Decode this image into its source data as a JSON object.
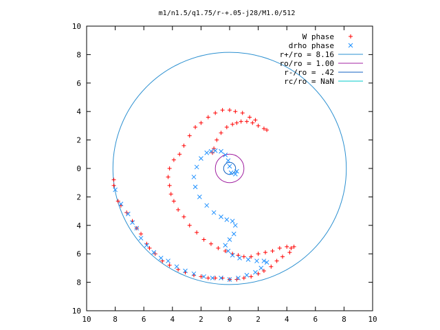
{
  "chart_data": {
    "type": "scatter",
    "title": "m1/n1.5/q1.75/r-+.05-j28/M1.0/512",
    "xlabel": "",
    "ylabel": "",
    "xlim": [
      -10,
      10
    ],
    "ylim": [
      -10,
      10
    ],
    "x_tick_labels": [
      "10",
      "8",
      "6",
      "4",
      "2",
      "0",
      "2",
      "4",
      "6",
      "8",
      "10"
    ],
    "y_tick_labels": [
      "10",
      "8",
      "6",
      "4",
      "2",
      "0",
      "2",
      "4",
      "6",
      "8",
      "10"
    ],
    "grid": false,
    "legend_position": "top-right",
    "series": [
      {
        "name": "W phase",
        "marker": "+",
        "color": "#ff0000",
        "points": [
          [
            0.5,
            3.2
          ],
          [
            0.8,
            3.3
          ],
          [
            1.2,
            3.3
          ],
          [
            1.6,
            3.2
          ],
          [
            2.0,
            3.0
          ],
          [
            2.4,
            2.8
          ],
          [
            2.6,
            2.7
          ],
          [
            0.2,
            3.1
          ],
          [
            -0.2,
            2.9
          ],
          [
            -0.6,
            2.5
          ],
          [
            -0.9,
            2.0
          ],
          [
            -1.1,
            1.4
          ],
          [
            -1.2,
            1.1
          ],
          [
            0.0,
            4.1
          ],
          [
            -0.5,
            4.1
          ],
          [
            -1.0,
            3.9
          ],
          [
            -1.5,
            3.6
          ],
          [
            -2.0,
            3.2
          ],
          [
            -2.4,
            2.9
          ],
          [
            -2.8,
            2.3
          ],
          [
            -3.2,
            1.6
          ],
          [
            -3.5,
            1.0
          ],
          [
            -3.9,
            0.6
          ],
          [
            0.4,
            4.0
          ],
          [
            0.9,
            3.9
          ],
          [
            1.4,
            3.6
          ],
          [
            1.8,
            3.4
          ],
          [
            -4.2,
            0.0
          ],
          [
            -4.3,
            -0.6
          ],
          [
            -4.2,
            -1.2
          ],
          [
            -4.1,
            -1.8
          ],
          [
            -3.9,
            -2.3
          ],
          [
            -3.6,
            -2.9
          ],
          [
            -3.2,
            -3.4
          ],
          [
            -2.8,
            -4.0
          ],
          [
            -2.3,
            -4.5
          ],
          [
            -1.8,
            -5.0
          ],
          [
            -1.3,
            -5.3
          ],
          [
            -0.8,
            -5.6
          ],
          [
            -0.3,
            -5.8
          ],
          [
            0.2,
            -6.0
          ],
          [
            0.6,
            -6.1
          ],
          [
            1.0,
            -6.2
          ],
          [
            1.5,
            -6.2
          ],
          [
            2.0,
            -6.0
          ],
          [
            2.5,
            -5.9
          ],
          [
            3.0,
            -5.8
          ],
          [
            3.5,
            -5.6
          ],
          [
            4.0,
            -5.5
          ],
          [
            4.3,
            -5.6
          ],
          [
            4.5,
            -5.5
          ],
          [
            4.2,
            -5.9
          ],
          [
            3.7,
            -6.2
          ],
          [
            3.3,
            -6.5
          ],
          [
            2.9,
            -6.9
          ],
          [
            2.4,
            -7.2
          ],
          [
            2.0,
            -7.4
          ],
          [
            1.5,
            -7.6
          ],
          [
            1.0,
            -7.7
          ],
          [
            0.5,
            -7.8
          ],
          [
            0.0,
            -7.8
          ],
          [
            -0.5,
            -7.7
          ],
          [
            -1.0,
            -7.7
          ],
          [
            -1.5,
            -7.7
          ],
          [
            -2.0,
            -7.6
          ],
          [
            -2.5,
            -7.5
          ],
          [
            -3.1,
            -7.3
          ],
          [
            -3.6,
            -7.1
          ],
          [
            -4.2,
            -6.8
          ],
          [
            -4.7,
            -6.5
          ],
          [
            -5.2,
            -6.0
          ],
          [
            -5.6,
            -5.6
          ],
          [
            -5.8,
            -5.3
          ],
          [
            -6.2,
            -4.6
          ],
          [
            -6.5,
            -4.2
          ],
          [
            -6.8,
            -3.7
          ],
          [
            -7.2,
            -3.1
          ],
          [
            -7.6,
            -2.6
          ],
          [
            -7.8,
            -2.3
          ],
          [
            -8.1,
            -1.2
          ],
          [
            -8.1,
            -0.8
          ]
        ]
      },
      {
        "name": "drho phase",
        "marker": "x",
        "color": "#1e90ff",
        "points": [
          [
            -1.3,
            1.2
          ],
          [
            -1.0,
            1.25
          ],
          [
            -0.6,
            1.2
          ],
          [
            -0.3,
            0.95
          ],
          [
            -0.1,
            0.55
          ],
          [
            0.0,
            0.15
          ],
          [
            0.1,
            -0.3
          ],
          [
            0.4,
            -0.4
          ],
          [
            0.5,
            -0.2
          ],
          [
            -1.6,
            1.1
          ],
          [
            -2.0,
            0.7
          ],
          [
            -2.3,
            0.1
          ],
          [
            -2.5,
            -0.6
          ],
          [
            -2.4,
            -1.3
          ],
          [
            -2.1,
            -2.0
          ],
          [
            -1.6,
            -2.6
          ],
          [
            -1.1,
            -3.1
          ],
          [
            -0.6,
            -3.4
          ],
          [
            -0.2,
            -3.6
          ],
          [
            0.2,
            -3.7
          ],
          [
            0.4,
            -4.0
          ],
          [
            0.3,
            -4.6
          ],
          [
            0.0,
            -5.0
          ],
          [
            -0.3,
            -5.4
          ],
          [
            -0.1,
            -5.8
          ],
          [
            0.2,
            -6.1
          ],
          [
            0.7,
            -6.3
          ],
          [
            1.3,
            -6.4
          ],
          [
            1.9,
            -6.5
          ],
          [
            2.4,
            -6.5
          ],
          [
            2.6,
            -6.6
          ],
          [
            2.2,
            -7.0
          ],
          [
            1.8,
            -7.3
          ],
          [
            1.2,
            -7.5
          ],
          [
            0.6,
            -7.7
          ],
          [
            0.0,
            -7.8
          ],
          [
            -0.6,
            -7.7
          ],
          [
            -1.2,
            -7.7
          ],
          [
            -1.8,
            -7.6
          ],
          [
            -2.5,
            -7.4
          ],
          [
            -3.1,
            -7.2
          ],
          [
            -3.7,
            -6.9
          ],
          [
            -4.3,
            -6.5
          ],
          [
            -4.8,
            -6.3
          ],
          [
            -5.3,
            -5.9
          ],
          [
            -5.8,
            -5.4
          ],
          [
            -6.2,
            -4.9
          ],
          [
            -6.5,
            -4.2
          ],
          [
            -6.8,
            -3.8
          ],
          [
            -7.1,
            -3.2
          ],
          [
            -7.6,
            -2.5
          ],
          [
            -8.0,
            -1.5
          ]
        ]
      }
    ],
    "circles": [
      {
        "name": "r+/ro",
        "value_label": "8.16",
        "radius": 8.16,
        "color": "#2a8fd0"
      },
      {
        "name": "ro/ro",
        "value_label": "1.00",
        "radius": 1.0,
        "color": "#a020a0"
      },
      {
        "name": "r-/ro",
        "value_label": ".42",
        "radius": 0.42,
        "color": "#1060c0"
      },
      {
        "name": "rc/ro",
        "value_label": "NaN",
        "radius": null,
        "color": "#00c8c8"
      }
    ],
    "legend": [
      {
        "label": "W phase",
        "symbol": "+",
        "color": "#ff0000"
      },
      {
        "label": "drho phase",
        "symbol": "x",
        "color": "#1e90ff"
      },
      {
        "label": "r+/ro = 8.16",
        "symbol": "line",
        "color": "#2a8fd0"
      },
      {
        "label": "ro/ro = 1.00",
        "symbol": "line",
        "color": "#a020a0"
      },
      {
        "label": "r-/ro = .42",
        "symbol": "line",
        "color": "#1060c0"
      },
      {
        "label": "rc/ro = NaN",
        "symbol": "line",
        "color": "#00c8c8"
      }
    ]
  }
}
